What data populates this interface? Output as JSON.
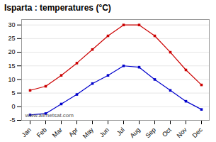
{
  "chart_data": {
    "type": "line",
    "title": "Isparta : temperatures (°C)",
    "categories": [
      "Jan",
      "Feb",
      "Mar",
      "Apr",
      "May",
      "Jun",
      "Jul",
      "Aug",
      "Sep",
      "Oct",
      "Nov",
      "Dec"
    ],
    "series": [
      {
        "color": "#cc0000",
        "marker": "square",
        "values": [
          6,
          7.5,
          11.5,
          16,
          21,
          26,
          30,
          30,
          26,
          20,
          13.5,
          8
        ]
      },
      {
        "color": "#0000cc",
        "marker": "square",
        "values": [
          -3,
          -2.5,
          1,
          4.5,
          8.5,
          11.5,
          15,
          14.5,
          10,
          6,
          2,
          -1
        ]
      }
    ],
    "ylim": [
      -5,
      32
    ],
    "yticks": [
      -5,
      0,
      5,
      10,
      15,
      20,
      25,
      30
    ],
    "grid": true,
    "annotations": [
      "www.allmetsat.com"
    ]
  }
}
